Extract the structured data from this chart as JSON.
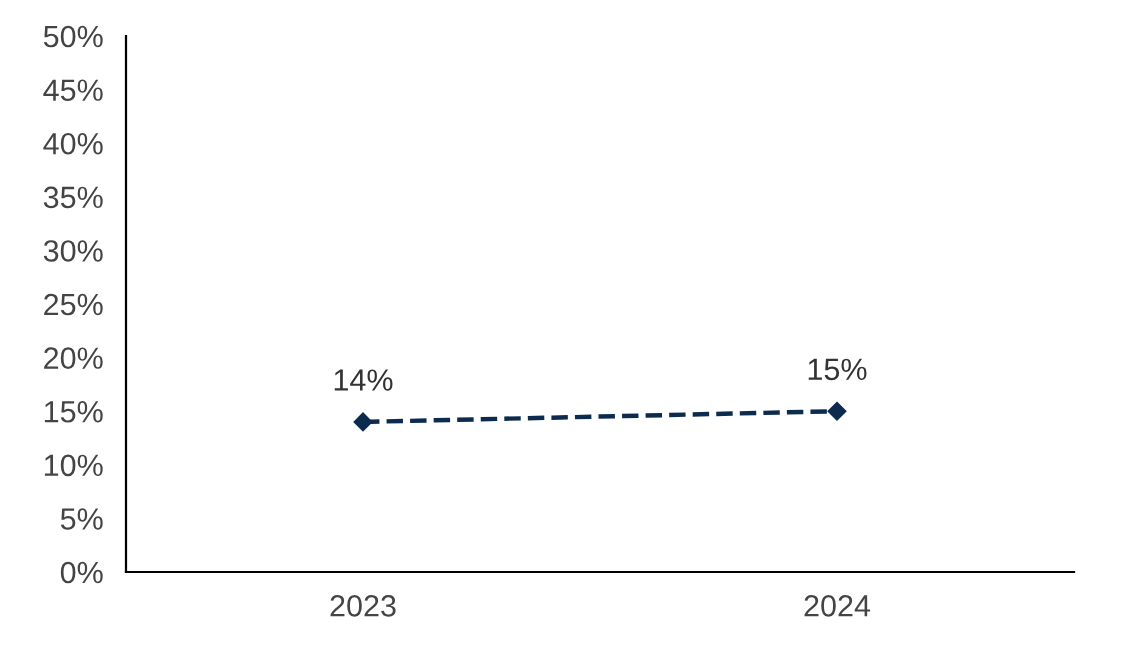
{
  "chart_data": {
    "type": "line",
    "categories": [
      "2023",
      "2024"
    ],
    "series": [
      {
        "color": "#0d2b4e",
        "values": [
          14,
          15
        ],
        "value_labels": [
          "14%",
          "15%"
        ]
      }
    ],
    "ylim": [
      0,
      50
    ],
    "yticks": [
      {
        "value": 0,
        "label": "0%"
      },
      {
        "value": 5,
        "label": "5%"
      },
      {
        "value": 10,
        "label": "10%"
      },
      {
        "value": 15,
        "label": "15%"
      },
      {
        "value": 20,
        "label": "20%"
      },
      {
        "value": 25,
        "label": "25%"
      },
      {
        "value": 30,
        "label": "30%"
      },
      {
        "value": 35,
        "label": "35%"
      },
      {
        "value": 40,
        "label": "40%"
      },
      {
        "value": 45,
        "label": "45%"
      },
      {
        "value": 50,
        "label": "50%"
      }
    ],
    "marker": "diamond",
    "line_style": "dashed",
    "grid": false
  }
}
